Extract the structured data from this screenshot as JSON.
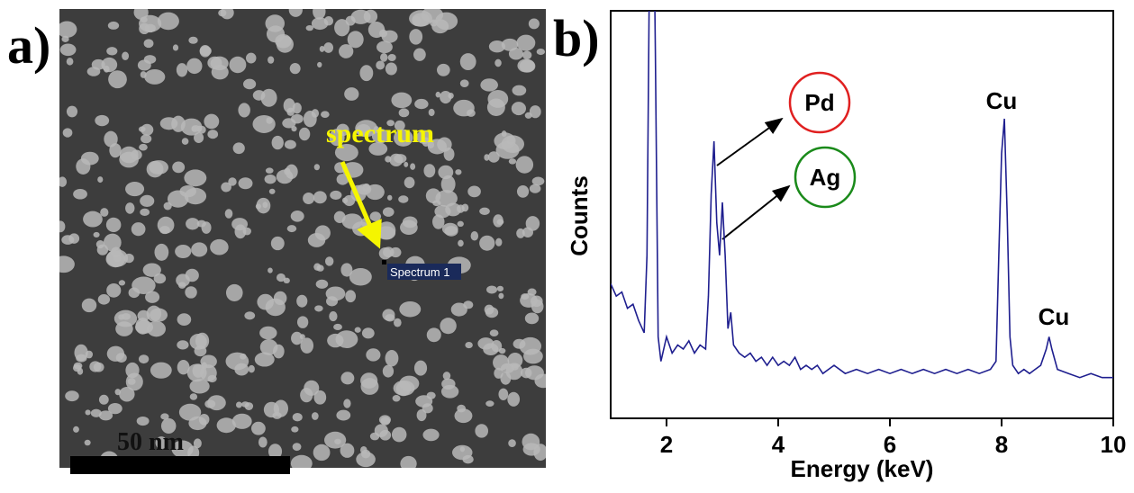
{
  "image_panel": {
    "label": "a)",
    "annotation": "spectrum",
    "marker_label": "Spectrum 1",
    "scale_bar": "50 nm"
  },
  "chart_data": {
    "type": "line",
    "panel_label": "b)",
    "x_label": "Energy (keV)",
    "y_label": "Counts",
    "annotations": [
      "Pd",
      "Ag",
      "Cu",
      "Cu"
    ],
    "xlim": [
      1,
      10
    ],
    "xticks": [
      2,
      4,
      6,
      8,
      10
    ],
    "ylim": [
      0,
      100
    ],
    "x": [
      1.0,
      1.1,
      1.2,
      1.3,
      1.4,
      1.5,
      1.6,
      1.65,
      1.7,
      1.75,
      1.8,
      1.85,
      1.9,
      2.0,
      2.1,
      2.2,
      2.3,
      2.4,
      2.5,
      2.6,
      2.7,
      2.75,
      2.8,
      2.85,
      2.9,
      2.95,
      3.0,
      3.05,
      3.1,
      3.15,
      3.2,
      3.3,
      3.4,
      3.5,
      3.6,
      3.7,
      3.8,
      3.9,
      4.0,
      4.1,
      4.2,
      4.3,
      4.4,
      4.5,
      4.6,
      4.7,
      4.8,
      4.9,
      5.0,
      5.2,
      5.4,
      5.6,
      5.8,
      6.0,
      6.2,
      6.4,
      6.6,
      6.8,
      7.0,
      7.2,
      7.4,
      7.6,
      7.8,
      7.9,
      7.95,
      8.0,
      8.05,
      8.1,
      8.15,
      8.2,
      8.3,
      8.4,
      8.5,
      8.6,
      8.7,
      8.8,
      8.85,
      8.9,
      9.0,
      9.2,
      9.4,
      9.6,
      9.8,
      10.0
    ],
    "series": [
      {
        "color": "#1f1f8f",
        "values": [
          33,
          30,
          31,
          27,
          28,
          24,
          21,
          40,
          120,
          150,
          90,
          20,
          14,
          20,
          16,
          18,
          17,
          19,
          16,
          18,
          17,
          30,
          55,
          68,
          48,
          40,
          53,
          40,
          22,
          26,
          18,
          16,
          15,
          16,
          14,
          15,
          13,
          15,
          13,
          14,
          13,
          15,
          12,
          13,
          12,
          13,
          11,
          12,
          13,
          11,
          12,
          11,
          12,
          11,
          12,
          11,
          12,
          11,
          12,
          11,
          12,
          11,
          12,
          14,
          40,
          65,
          73.5,
          50,
          20,
          13,
          11,
          12,
          11,
          12,
          13,
          17,
          20,
          17,
          12,
          11,
          10,
          11,
          10,
          10
        ]
      }
    ]
  }
}
